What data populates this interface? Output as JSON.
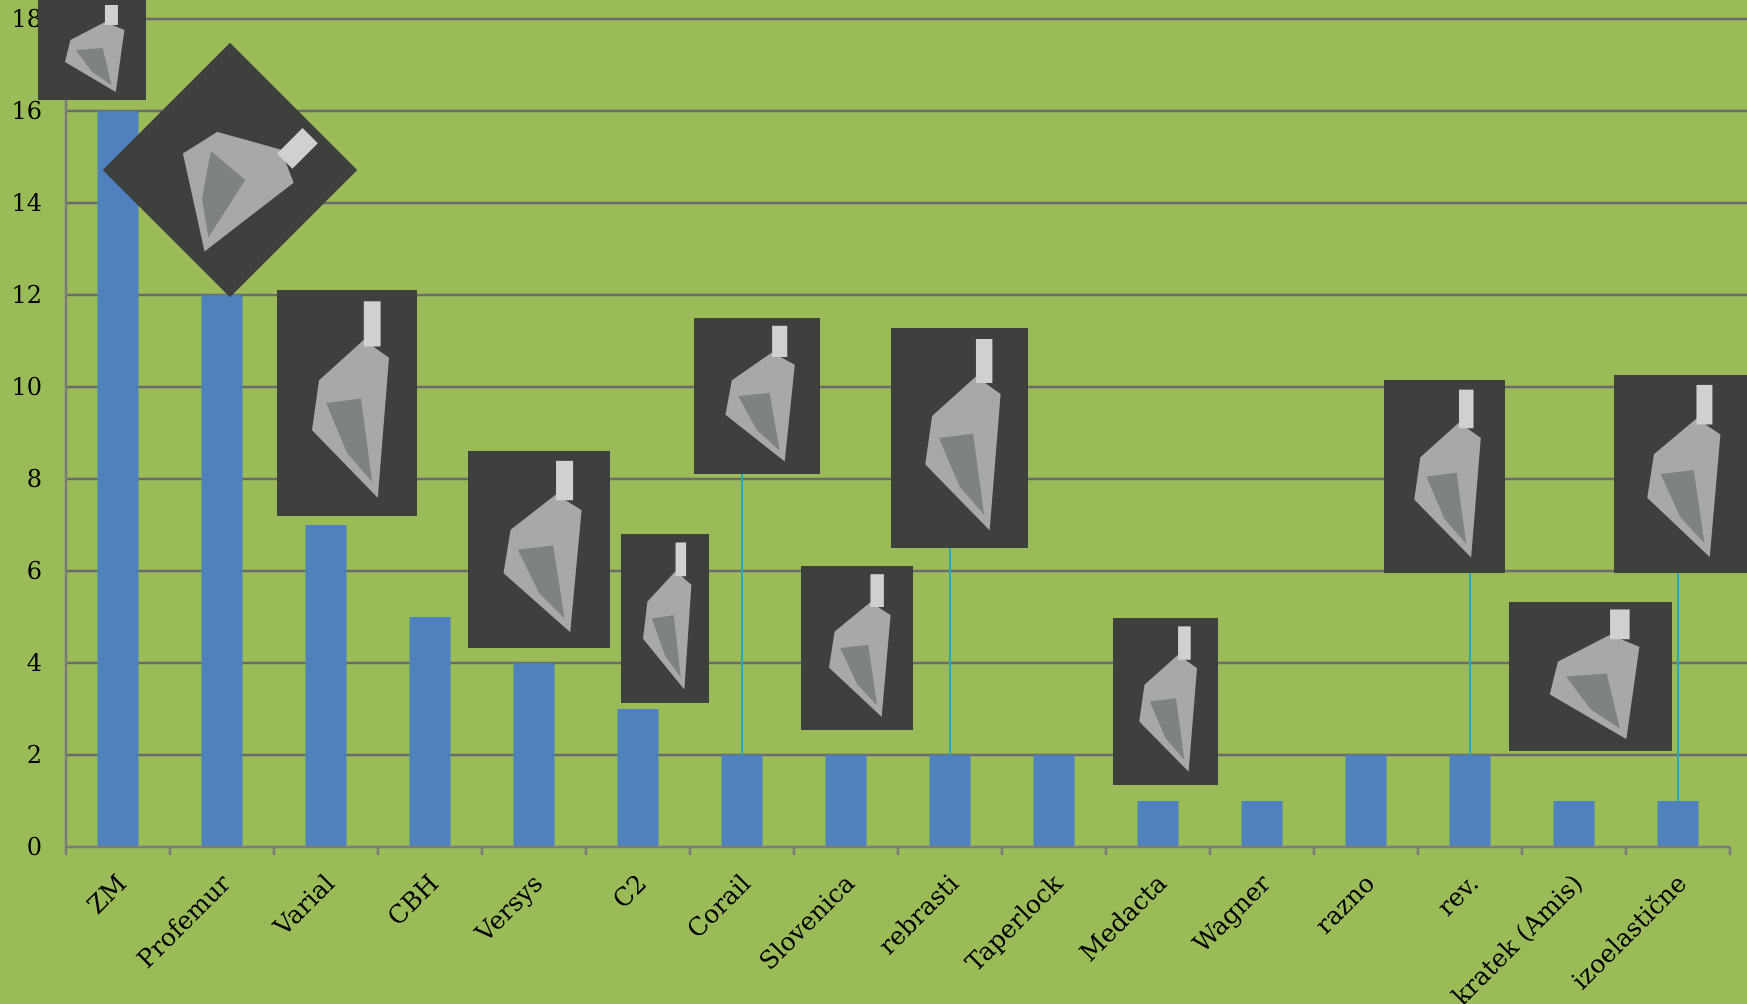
{
  "chart_data": {
    "type": "bar",
    "categories": [
      "ZM",
      "Profemur",
      "Varial",
      "CBH",
      "Versys",
      "C2",
      "Corail",
      "Slovenica",
      "rebrasti",
      "Taperlock",
      "Medacta",
      "Wagner",
      "razno",
      "rev.",
      "kratek (Amis)",
      "izoelastične"
    ],
    "values": [
      16,
      12,
      7,
      5,
      4,
      3,
      2,
      2,
      2,
      2,
      1,
      1,
      2,
      2,
      1,
      1
    ],
    "ylim": [
      0,
      18
    ],
    "yticks": [
      "0",
      "2",
      "4",
      "6",
      "8",
      "10",
      "12",
      "14",
      "16",
      "18"
    ],
    "grid": true,
    "bar_color": "#4f81bd",
    "background_color": "#9bbb59",
    "images": [
      "hip-stem-photo",
      "hip-stem-photo",
      "hip-stem-photo",
      "hip-stem-photo",
      "hip-stem-photo",
      "hip-stem-photo",
      "hip-stem-photo",
      "hip-stem-photo",
      "hip-stem-photo",
      "hip-stem-photo",
      "hip-stem-photo",
      "hip-stem-photo"
    ]
  }
}
